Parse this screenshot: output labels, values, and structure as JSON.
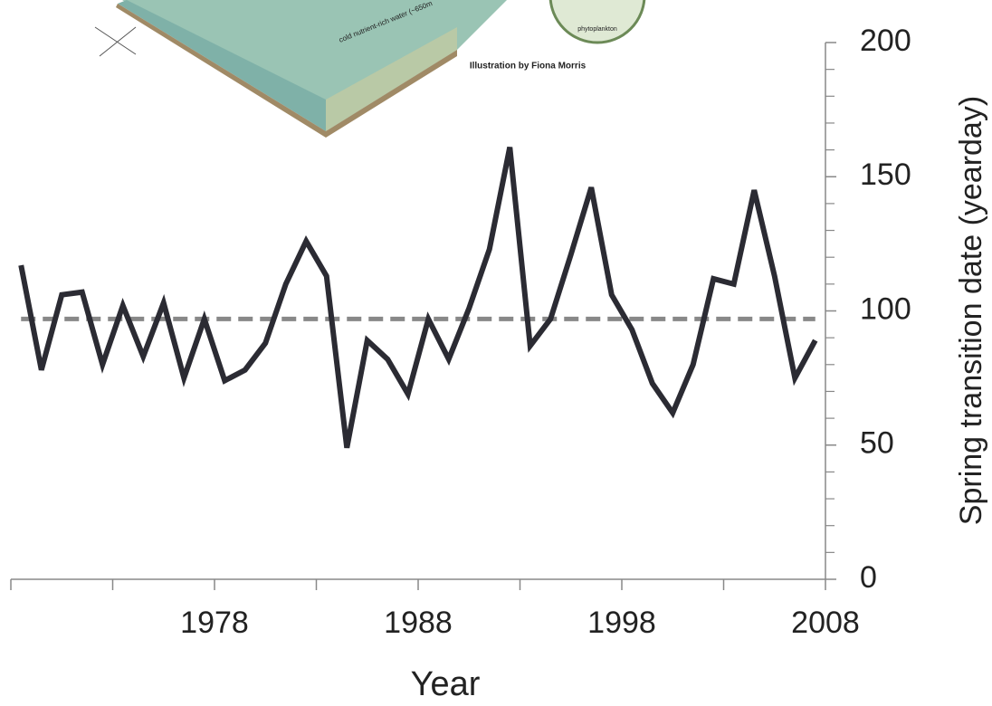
{
  "chart_data": {
    "type": "line",
    "x_label": "Year",
    "y_label": "Spring transition date (yearday)",
    "annotations": [
      "Illustration by Fiona Morris",
      "phytoplankton",
      "cold nutrient-rich water (~650m"
    ],
    "x": [
      1968.5,
      1969.5,
      1970.5,
      1971.5,
      1972.5,
      1973.5,
      1974.5,
      1975.5,
      1976.5,
      1977.5,
      1978.5,
      1979.5,
      1980.5,
      1981.5,
      1982.5,
      1983.5,
      1984.5,
      1985.5,
      1986.5,
      1987.5,
      1988.5,
      1989.5,
      1990.5,
      1991.5,
      1992.5,
      1993.5,
      1994.5,
      1995.5,
      1996.5,
      1997.5,
      1998.5,
      1999.5,
      2000.5,
      2001.5,
      2002.5,
      2003.5,
      2004.5,
      2005.5,
      2006.5,
      2007.5
    ],
    "series": [
      {
        "color": "#2b2b33",
        "values": [
          117,
          78,
          106,
          107,
          80,
          102,
          83,
          103,
          75,
          97,
          74,
          78,
          88,
          110,
          126,
          113,
          49,
          89,
          82,
          69,
          97,
          82,
          101,
          123,
          161,
          87,
          97,
          121,
          146,
          106,
          93,
          73,
          62,
          80,
          112,
          110,
          145,
          113,
          75,
          89
        ]
      }
    ],
    "mean": 97,
    "mean_color": "#888888",
    "xlim": [
      1968,
      2008
    ],
    "xticks": [
      1978,
      1988,
      1998,
      2008
    ],
    "xminor_ticks": [
      1968,
      1973,
      1983,
      1993,
      2003
    ],
    "ylim": [
      0,
      200
    ],
    "yticks": [
      0,
      50,
      100,
      150,
      200
    ],
    "yminor_ticks": [
      10,
      20,
      30,
      40,
      60,
      70,
      80,
      90,
      110,
      120,
      130,
      140,
      160,
      170,
      180,
      190
    ],
    "y_axis_side": "right"
  }
}
